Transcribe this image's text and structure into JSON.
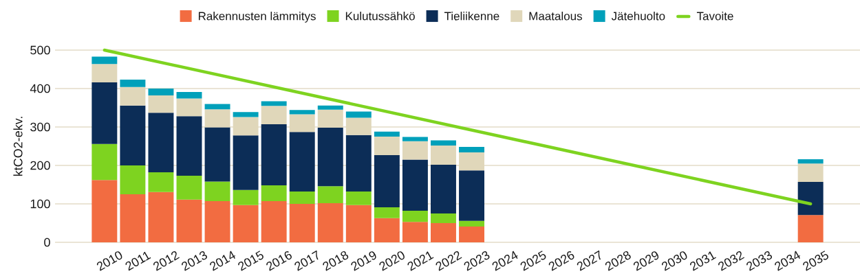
{
  "chart_data": {
    "type": "bar",
    "stacked": true,
    "x": [
      2010,
      2011,
      2012,
      2013,
      2014,
      2015,
      2016,
      2017,
      2018,
      2019,
      2020,
      2021,
      2022,
      2023,
      2035
    ],
    "series": [
      {
        "name": "Rakennusten lämmitys",
        "color": "#f26c41",
        "values": [
          162,
          125,
          131,
          111,
          107,
          97,
          107,
          100,
          102,
          97,
          63,
          53,
          50,
          41,
          71
        ]
      },
      {
        "name": "Kulutussähkö",
        "color": "#7ed320",
        "values": [
          94,
          75,
          51,
          62,
          51,
          39,
          41,
          32,
          44,
          35,
          28,
          29,
          25,
          15,
          0
        ]
      },
      {
        "name": "Tieliikenne",
        "color": "#0c2d57",
        "values": [
          160,
          156,
          155,
          155,
          141,
          142,
          159,
          155,
          152,
          147,
          136,
          133,
          127,
          131,
          86
        ]
      },
      {
        "name": "Maatalous",
        "color": "#e0d7ba",
        "values": [
          48,
          48,
          45,
          46,
          47,
          48,
          48,
          46,
          47,
          45,
          48,
          48,
          50,
          47,
          48
        ]
      },
      {
        "name": "Jätehuolto",
        "color": "#00a0ba",
        "values": [
          19,
          19,
          18,
          17,
          14,
          13,
          12,
          11,
          11,
          16,
          13,
          11,
          13,
          14,
          11
        ]
      },
      {
        "name": "Tavoite",
        "type": "line",
        "color": "#7ed320",
        "x": [
          2010,
          2035
        ],
        "values": [
          500,
          100
        ]
      }
    ],
    "ylabel": "ktCO2-ekv.",
    "xlim": [
      2008.25,
      2036.75
    ],
    "xticks": [
      2010,
      2011,
      2012,
      2013,
      2014,
      2015,
      2016,
      2017,
      2018,
      2019,
      2020,
      2021,
      2022,
      2023,
      2024,
      2025,
      2026,
      2027,
      2028,
      2029,
      2030,
      2031,
      2032,
      2033,
      2034,
      2035
    ],
    "ylim": [
      0,
      500
    ],
    "yticks": [
      0,
      100,
      200,
      300,
      400,
      500
    ],
    "grid": "y",
    "legend": "top"
  }
}
